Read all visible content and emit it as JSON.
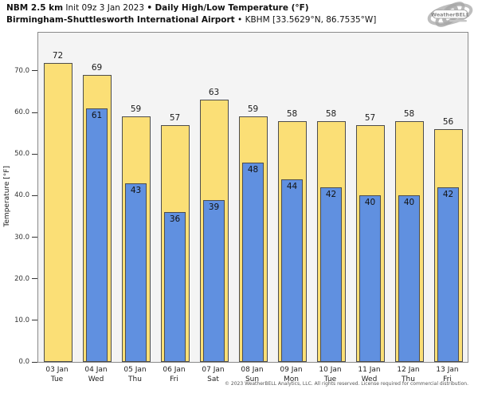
{
  "header": {
    "title_model": "NBM 2.5 km",
    "title_init": "Init 09z 3 Jan 2023",
    "separator": "•",
    "title_product": "Daily High/Low Temperature (°F)",
    "station": "Birmingham-Shuttlesworth International Airport",
    "station_id": "KBHM [33.5629°N, 86.7535°W]"
  },
  "logo": {
    "text": "WeatherBELL"
  },
  "chart_data": {
    "type": "bar",
    "title": "NBM 2.5 km Daily High/Low Temperature (°F) — Birmingham-Shuttlesworth International Airport (KBHM)",
    "categories": [
      {
        "date": "03 Jan",
        "day": "Tue"
      },
      {
        "date": "04 Jan",
        "day": "Wed"
      },
      {
        "date": "05 Jan",
        "day": "Thu"
      },
      {
        "date": "06 Jan",
        "day": "Fri"
      },
      {
        "date": "07 Jan",
        "day": "Sat"
      },
      {
        "date": "08 Jan",
        "day": "Sun"
      },
      {
        "date": "09 Jan",
        "day": "Mon"
      },
      {
        "date": "10 Jan",
        "day": "Tue"
      },
      {
        "date": "11 Jan",
        "day": "Wed"
      },
      {
        "date": "12 Jan",
        "day": "Thu"
      },
      {
        "date": "13 Jan",
        "day": "Fri"
      }
    ],
    "series": [
      {
        "name": "High",
        "color": "#fbdf76",
        "values": [
          72,
          69,
          59,
          57,
          63,
          59,
          58,
          58,
          57,
          58,
          56
        ]
      },
      {
        "name": "Low",
        "color": "#6090e0",
        "values": [
          null,
          61,
          43,
          36,
          39,
          48,
          44,
          42,
          40,
          40,
          42
        ]
      }
    ],
    "ylabel": "Temperature [°F]",
    "yticks": [
      0,
      10,
      20,
      30,
      40,
      50,
      60,
      70
    ],
    "ytick_labels": [
      "0.0",
      "10.0",
      "20.0",
      "30.0",
      "40.0",
      "50.0",
      "60.0",
      "70.0"
    ],
    "ylim": [
      0,
      79.2
    ],
    "grid": false,
    "legend": "none",
    "bar_border_color": "#4d4d4d",
    "plot_bg_color": "#f4f4f4"
  },
  "footer": {
    "copyright": "© 2023 WeatherBELL Analytics, LLC. All rights reserved. License required for commercial distribution."
  }
}
